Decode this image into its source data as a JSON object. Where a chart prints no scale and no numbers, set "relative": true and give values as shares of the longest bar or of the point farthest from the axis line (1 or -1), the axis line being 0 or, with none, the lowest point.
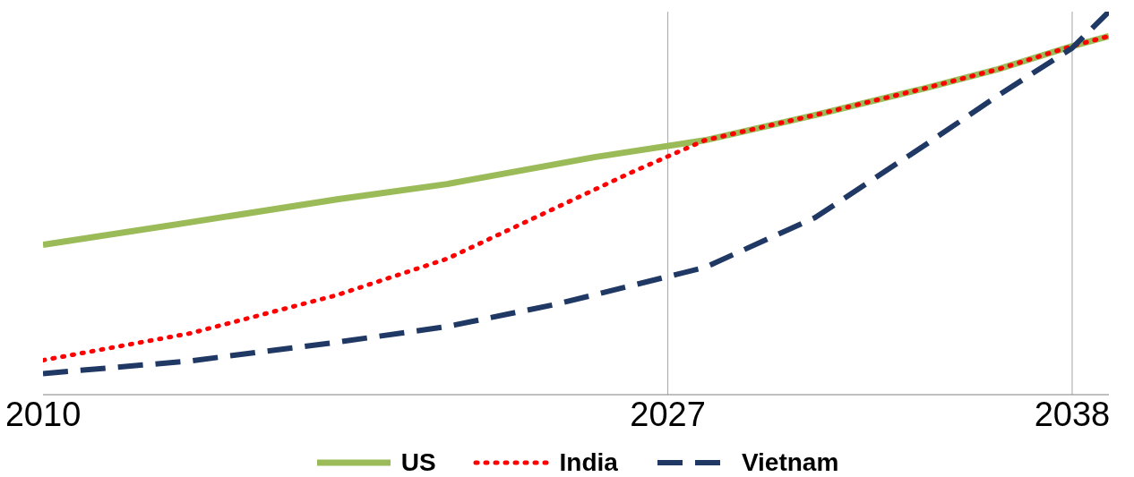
{
  "chart_data": {
    "type": "line",
    "relative": true,
    "xlim": [
      2010,
      2039
    ],
    "xticks": [
      2010,
      2027,
      2038
    ],
    "legend": "bottom",
    "grid": false,
    "marker": "none",
    "ref_lines": [
      {
        "axis": "x",
        "value": 2027,
        "color": "#a6a6a6"
      },
      {
        "axis": "x",
        "value": 2038,
        "color": "#a6a6a6"
      }
    ],
    "series": [
      {
        "name": "US",
        "color": "#9bbb59",
        "line_style": "solid",
        "x": [
          2010,
          2014,
          2018,
          2021,
          2025,
          2028,
          2031,
          2034,
          2036,
          2038,
          2039
        ],
        "values": [
          0.391,
          0.45,
          0.51,
          0.55,
          0.62,
          0.664,
          0.73,
          0.8,
          0.85,
          0.91,
          0.936
        ]
      },
      {
        "name": "India",
        "color": "#ff0000",
        "line_style": "dotted",
        "x": [
          2010,
          2014,
          2018,
          2021,
          2024,
          2026,
          2028,
          2031,
          2034,
          2036,
          2038,
          2039
        ],
        "values": [
          0.09,
          0.16,
          0.26,
          0.355,
          0.49,
          0.58,
          0.664,
          0.73,
          0.8,
          0.85,
          0.91,
          0.936
        ]
      },
      {
        "name": "Vietnam",
        "color": "#1f3864",
        "line_style": "dashed",
        "x": [
          2010,
          2014,
          2018,
          2021,
          2024,
          2028,
          2031,
          2034,
          2036,
          2038,
          2039
        ],
        "values": [
          0.055,
          0.088,
          0.137,
          0.178,
          0.237,
          0.332,
          0.462,
          0.652,
          0.782,
          0.905,
          1
        ]
      }
    ]
  }
}
